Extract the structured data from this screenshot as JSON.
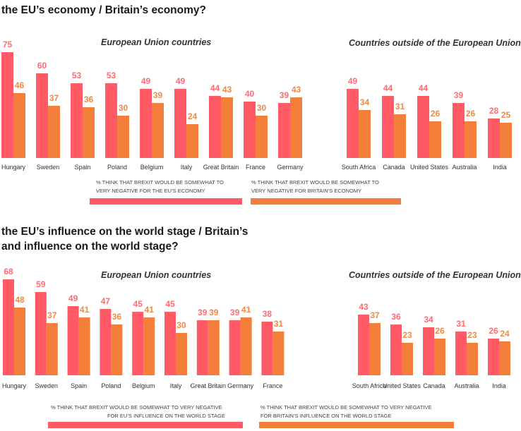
{
  "colors": {
    "pink": "#ff5a66",
    "orange": "#f47f3a",
    "pink_text": "#ff6b74",
    "orange_text": "#f08a44"
  },
  "chart_data": [
    {
      "type": "bar",
      "title": "the EU’s economy / Britain’s economy?",
      "groups": [
        {
          "title": "European Union countries",
          "categories": [
            "Hungary",
            "Sweden",
            "Spain",
            "Poland",
            "Belgium",
            "Italy",
            "Great Britain",
            "France",
            "Germany"
          ],
          "series": [
            {
              "name": "eu",
              "values": [
                75,
                60,
                53,
                53,
                49,
                49,
                44,
                40,
                39
              ]
            },
            {
              "name": "britain",
              "values": [
                46,
                37,
                36,
                30,
                39,
                24,
                43,
                30,
                43
              ]
            }
          ]
        },
        {
          "title": "Countries outside of the European Union",
          "categories": [
            "South Africa",
            "Canada",
            "United States",
            "Australia",
            "India"
          ],
          "series": [
            {
              "name": "eu",
              "values": [
                49,
                44,
                44,
                39,
                28
              ]
            },
            {
              "name": "britain",
              "values": [
                34,
                31,
                26,
                26,
                25
              ]
            }
          ]
        }
      ],
      "legend": [
        {
          "series": "eu",
          "line1": "% THINK THAT BREXIT WOULD BE SOMEWHAT TO",
          "line2": "VERY NEGATIVE FOR THE EU’S ECONOMY"
        },
        {
          "series": "britain",
          "line1": "% THINK THAT BREXIT WOULD BE SOMEWHAT TO",
          "line2": "VERY NEGATIVE FOR BRITAIN’S ECONOMY"
        }
      ],
      "ylim": [
        0,
        80
      ]
    },
    {
      "type": "bar",
      "title_line1": "the EU’s influence on the world stage / Britain’s",
      "title_line2": "and influence on the world stage?",
      "groups": [
        {
          "title": "European Union countries",
          "categories": [
            "Hungary",
            "Sweden",
            "Spain",
            "Poland",
            "Belgium",
            "Italy",
            "Great Britain",
            "Germany",
            "France"
          ],
          "series": [
            {
              "name": "eu",
              "values": [
                68,
                59,
                49,
                47,
                45,
                45,
                39,
                39,
                38
              ]
            },
            {
              "name": "britain",
              "values": [
                48,
                37,
                41,
                36,
                41,
                30,
                39,
                41,
                31
              ]
            }
          ]
        },
        {
          "title": "Countries outside of the European Union",
          "categories": [
            "South Africa",
            "United States",
            "Canada",
            "Australia",
            "India"
          ],
          "series": [
            {
              "name": "eu",
              "values": [
                43,
                36,
                34,
                31,
                26
              ]
            },
            {
              "name": "britain",
              "values": [
                37,
                23,
                26,
                23,
                24
              ]
            }
          ]
        }
      ],
      "legend": [
        {
          "series": "eu",
          "line1": "% THINK THAT BREXIT WOULD BE SOMEWHAT TO VERY NEGATIVE",
          "line2": "FOR EU’S INFLUENCE ON THE WORLD STAGE"
        },
        {
          "series": "britain",
          "line1": "% THINK THAT BREXIT WOULD BE SOMEWHAT TO VERY NEGATIVE",
          "line2": "FOR BRITAIN’S INFLUENCE ON THE WORLD STAGE"
        }
      ],
      "ylim": [
        0,
        80
      ]
    }
  ]
}
